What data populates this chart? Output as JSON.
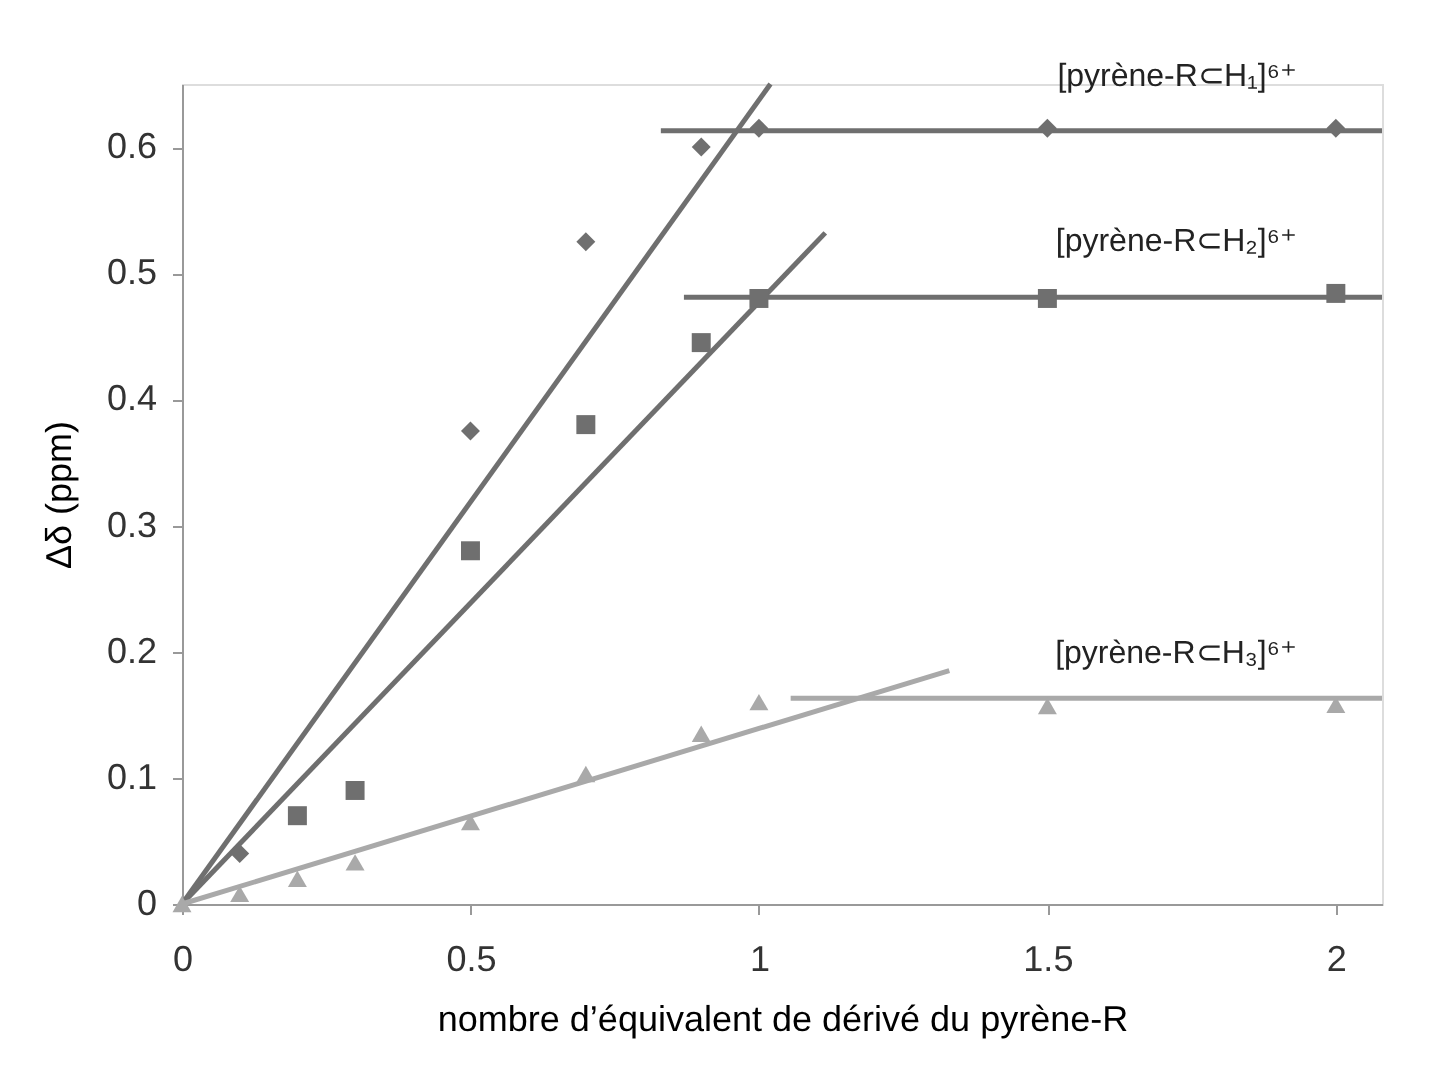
{
  "chart_data": {
    "type": "scatter",
    "xlabel": "nombre d’équivalent de dérivé du pyrène-R",
    "ylabel": "Δδ (ppm)",
    "xlim": [
      0,
      2.08
    ],
    "ylim": [
      0,
      0.65
    ],
    "xticks": [
      0,
      0.5,
      1,
      1.5,
      2
    ],
    "yticks": [
      0,
      0.1,
      0.2,
      0.3,
      0.4,
      0.5,
      0.6
    ],
    "grid": false,
    "series": [
      {
        "name": "[pyrène-R⊂H₁]⁶⁺",
        "marker": "diamond",
        "color": "#6f6f6f",
        "x": [
          0.1,
          0.5,
          0.7,
          0.9,
          1,
          1.5,
          2
        ],
        "values": [
          0.04,
          0.375,
          0.525,
          0.6,
          0.615,
          0.615,
          0.615
        ]
      },
      {
        "name": "[pyrène-R⊂H₂]⁶⁺",
        "marker": "square",
        "color": "#6f6f6f",
        "x": [
          0.2,
          0.3,
          0.5,
          0.7,
          0.9,
          1,
          1.5,
          2
        ],
        "values": [
          0.07,
          0.09,
          0.28,
          0.38,
          0.445,
          0.48,
          0.48,
          0.484
        ]
      },
      {
        "name": "[pyrène-R⊂H₃]⁶⁺",
        "marker": "triangle",
        "color": "#a9a9a9",
        "x": [
          0,
          0.1,
          0.2,
          0.3,
          0.5,
          0.7,
          0.9,
          1,
          1.5,
          2
        ],
        "values": [
          0,
          0.008,
          0.02,
          0.033,
          0.065,
          0.103,
          0.135,
          0.16,
          0.157,
          0.158
        ]
      },
      {
        "type": "line",
        "marker": "none",
        "color": "#6f6f6f",
        "x": [
          0,
          1.02
        ],
        "values": [
          0,
          0.65
        ]
      },
      {
        "type": "line",
        "marker": "none",
        "color": "#6f6f6f",
        "x": [
          0.83,
          2.08
        ],
        "values": [
          0.613,
          0.613
        ]
      },
      {
        "type": "line",
        "marker": "none",
        "color": "#6f6f6f",
        "x": [
          0,
          1.115
        ],
        "values": [
          0,
          0.532
        ]
      },
      {
        "type": "line",
        "marker": "none",
        "color": "#6f6f6f",
        "x": [
          0.87,
          2.08
        ],
        "values": [
          0.481,
          0.481
        ]
      },
      {
        "type": "line",
        "marker": "none",
        "color": "#a9a9a9",
        "x": [
          0,
          1.33
        ],
        "values": [
          0,
          0.185
        ]
      },
      {
        "type": "line",
        "marker": "none",
        "color": "#a9a9a9",
        "x": [
          1.055,
          2.08
        ],
        "values": [
          0.163,
          0.163
        ]
      }
    ]
  }
}
